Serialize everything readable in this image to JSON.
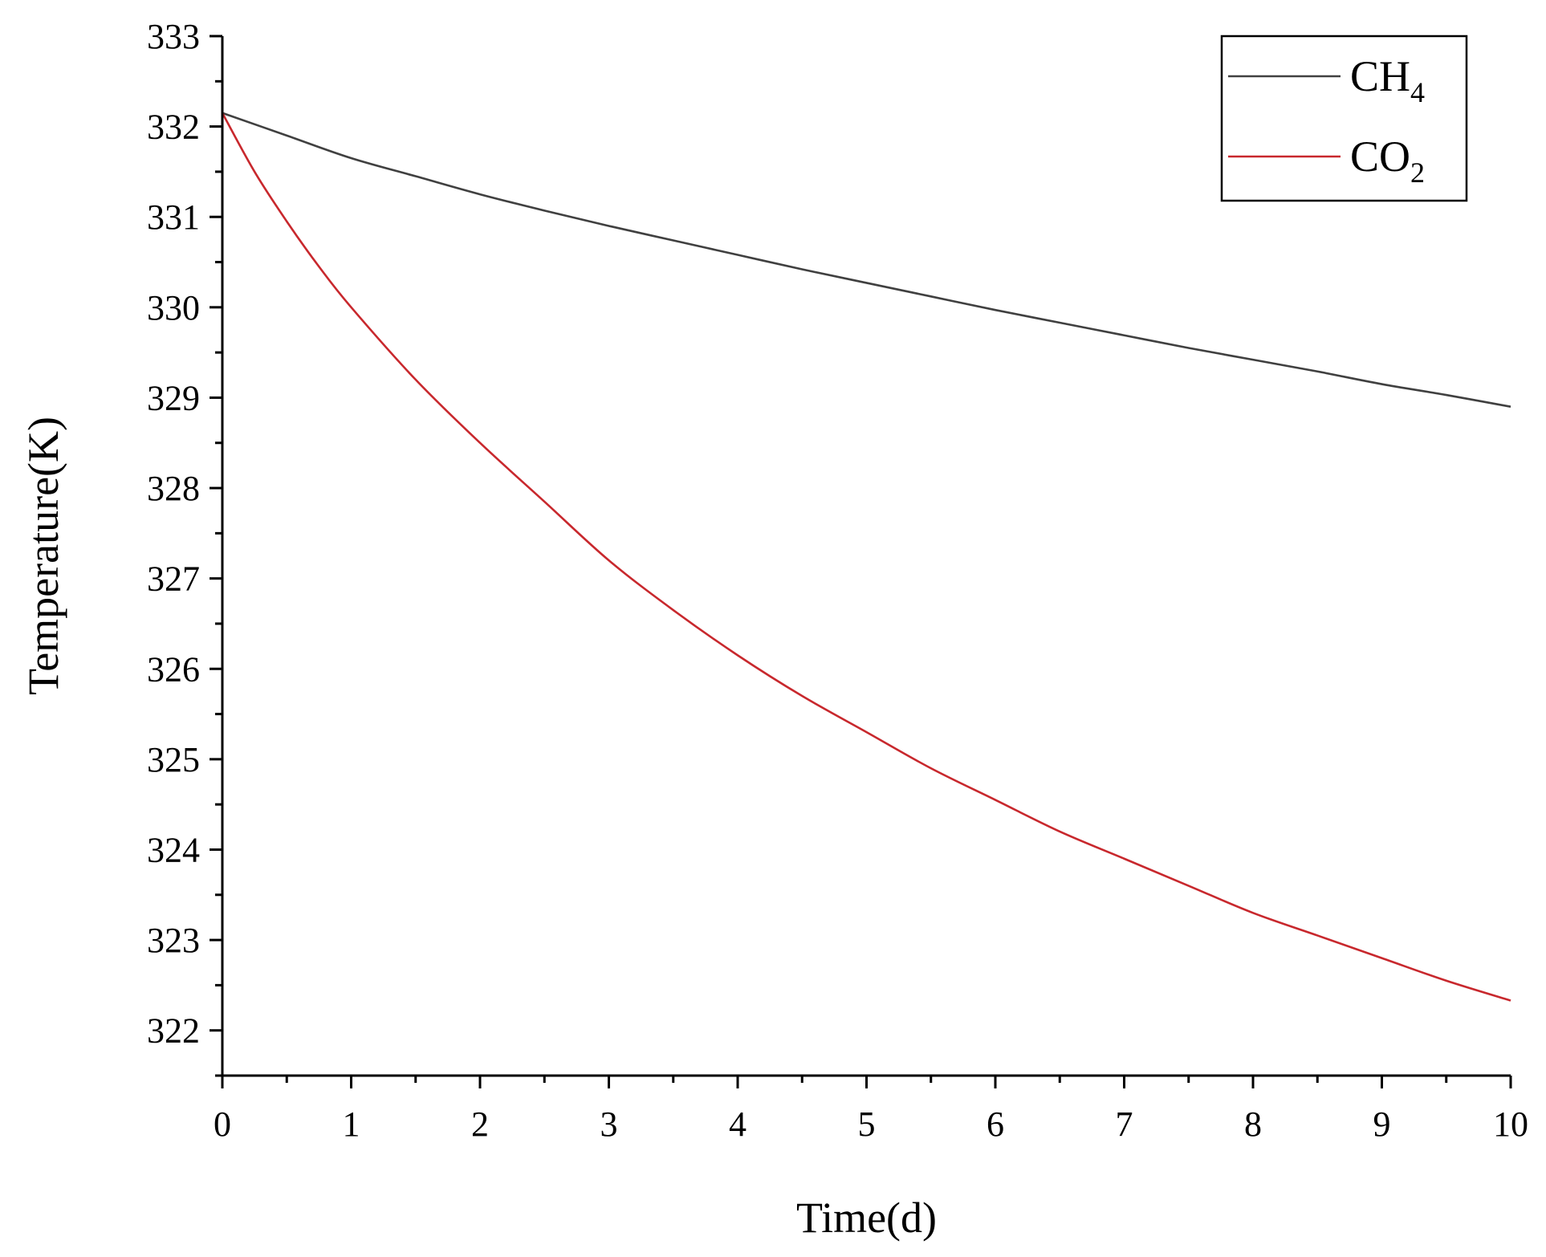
{
  "chart_data": {
    "type": "line",
    "title": "",
    "xlabel": "Time(d)",
    "ylabel": "Temperature(K)",
    "xlim": [
      0,
      10
    ],
    "ylim": [
      321.5,
      333
    ],
    "x_ticks": [
      0,
      1,
      2,
      3,
      4,
      5,
      6,
      7,
      8,
      9,
      10
    ],
    "y_ticks": [
      322,
      323,
      324,
      325,
      326,
      327,
      328,
      329,
      330,
      331,
      332,
      333
    ],
    "grid": false,
    "legend_position": "top-right",
    "series": [
      {
        "name": "CH4",
        "label_base": "CH",
        "label_sub": "4",
        "color": "#404040",
        "x": [
          0,
          0.5,
          1,
          1.5,
          2,
          2.5,
          3,
          3.5,
          4,
          4.5,
          5,
          5.5,
          6,
          6.5,
          7,
          7.5,
          8,
          8.5,
          9,
          9.5,
          10
        ],
        "y": [
          332.15,
          331.9,
          331.65,
          331.45,
          331.25,
          331.07,
          330.9,
          330.74,
          330.58,
          330.42,
          330.27,
          330.12,
          329.97,
          329.83,
          329.69,
          329.55,
          329.42,
          329.29,
          329.15,
          329.03,
          328.9
        ]
      },
      {
        "name": "CO2",
        "label_base": "CO",
        "label_sub": "2",
        "color": "#c8282d",
        "x": [
          0,
          0.25,
          0.5,
          0.75,
          1,
          1.5,
          2,
          2.5,
          3,
          3.5,
          4,
          4.5,
          5,
          5.5,
          6,
          6.5,
          7,
          7.5,
          8,
          8.5,
          9,
          9.5,
          10
        ],
        "y": [
          332.15,
          331.5,
          330.95,
          330.45,
          330.0,
          329.2,
          328.5,
          327.85,
          327.2,
          326.65,
          326.15,
          325.7,
          325.3,
          324.9,
          324.55,
          324.2,
          323.9,
          323.6,
          323.3,
          323.05,
          322.8,
          322.55,
          322.33
        ]
      }
    ]
  }
}
